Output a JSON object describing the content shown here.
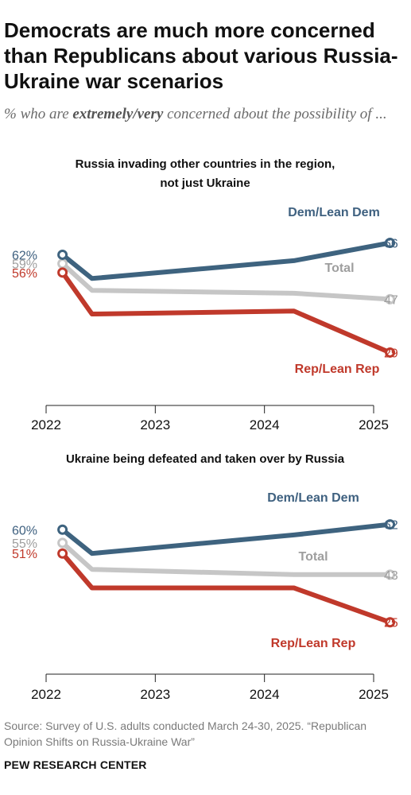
{
  "title": "Democrats are much more concerned than Republicans about various Russia-Ukraine war scenarios",
  "subtitle": {
    "prefix": "% who are ",
    "emphasis": "extremely/very",
    "suffix": " concerned about the possibility of ..."
  },
  "colors": {
    "dem": "#3e637f",
    "total": "#c6c6c6",
    "rep": "#c0392b",
    "dem_label": "#3f6180",
    "total_label": "#9e9e9e",
    "rep_label": "#c0392b",
    "axis": "#222222"
  },
  "chart_data": [
    {
      "type": "line",
      "title": "Russia invading other countries in the region, not just Ukraine",
      "x": [
        2022.15,
        2022.42,
        2024.27,
        2025.15
      ],
      "xticks": [
        "2022",
        "2023",
        "2024",
        "2025"
      ],
      "xlim": [
        2022,
        2025
      ],
      "ylim": [
        20,
        75
      ],
      "series": [
        {
          "key": "dem",
          "name": "Dem/Lean Dem",
          "values": [
            62,
            54,
            60,
            66
          ],
          "start_label": "62%",
          "end_label": "66"
        },
        {
          "key": "total",
          "name": "Total",
          "values": [
            59,
            50,
            49,
            47
          ],
          "start_label": "59%",
          "end_label": "47"
        },
        {
          "key": "rep",
          "name": "Rep/Lean Rep",
          "values": [
            56,
            42,
            43,
            29
          ],
          "start_label": "56%",
          "end_label": "29"
        }
      ]
    },
    {
      "type": "line",
      "title": "Ukraine being defeated and taken over by Russia",
      "x": [
        2022.15,
        2022.42,
        2024.27,
        2025.15
      ],
      "xticks": [
        "2022",
        "2023",
        "2024",
        "2025"
      ],
      "xlim": [
        2022,
        2025
      ],
      "ylim": [
        15,
        70
      ],
      "series": [
        {
          "key": "dem",
          "name": "Dem/Lean Dem",
          "values": [
            60,
            51,
            58,
            62
          ],
          "start_label": "60%",
          "end_label": "62"
        },
        {
          "key": "total",
          "name": "Total",
          "values": [
            55,
            45,
            43,
            43
          ],
          "start_label": "55%",
          "end_label": "43"
        },
        {
          "key": "rep",
          "name": "Rep/Lean Rep",
          "values": [
            51,
            38,
            38,
            25
          ],
          "start_label": "51%",
          "end_label": "25"
        }
      ]
    }
  ],
  "source": "Source: Survey of U.S. adults conducted March 24-30, 2025. “Republican Opinion Shifts on Russia-Ukraine War”",
  "brand": "PEW RESEARCH CENTER"
}
